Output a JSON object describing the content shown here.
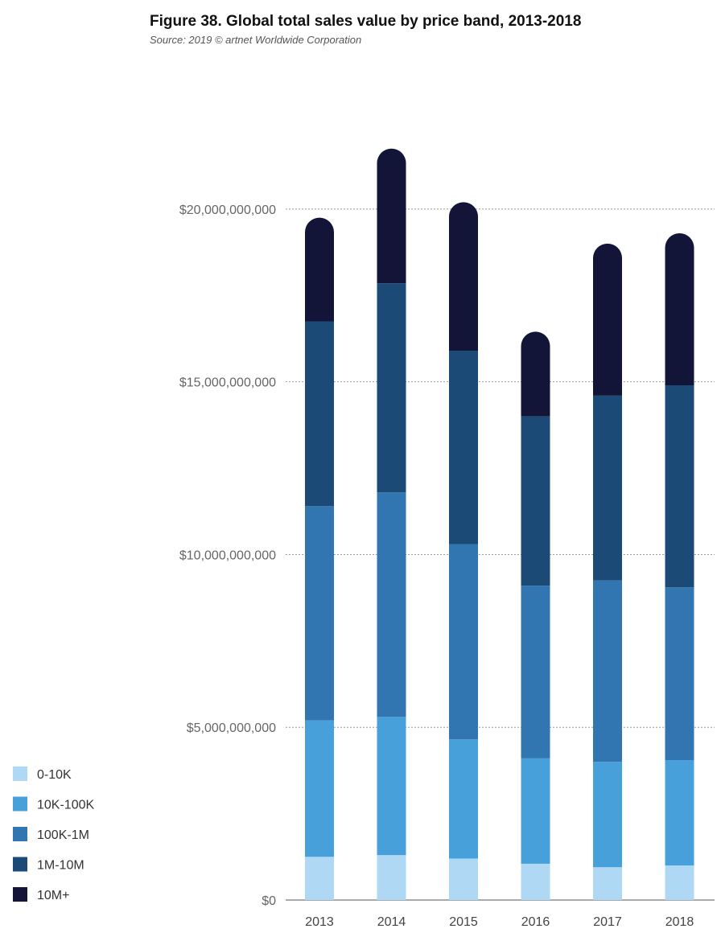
{
  "chart_data": {
    "type": "bar",
    "stacked": true,
    "title": "Figure 38. Global total sales value by price band, 2013-2018",
    "subtitle": "Source: 2019 © artnet Worldwide Corporation",
    "categories": [
      "2013",
      "2014",
      "2015",
      "2016",
      "2017",
      "2018"
    ],
    "series": [
      {
        "name": "0-10K",
        "color": "#aed8f3",
        "values": [
          1250000000,
          1300000000,
          1200000000,
          1050000000,
          950000000,
          1000000000
        ]
      },
      {
        "name": "10K-100K",
        "color": "#47a0da",
        "values": [
          3950000000,
          4000000000,
          3450000000,
          3050000000,
          3050000000,
          3050000000
        ]
      },
      {
        "name": "100K-1M",
        "color": "#3276b1",
        "values": [
          6200000000,
          6500000000,
          5650000000,
          5000000000,
          5250000000,
          5000000000
        ]
      },
      {
        "name": "1M-10M",
        "color": "#1c4a76",
        "values": [
          5350000000,
          6050000000,
          5600000000,
          4900000000,
          5350000000,
          5850000000
        ]
      },
      {
        "name": "10M+",
        "color": "#121538",
        "values": [
          3000000000,
          3900000000,
          4300000000,
          2450000000,
          4400000000,
          4400000000
        ]
      }
    ],
    "ylim": [
      0,
      22000000000
    ],
    "yticks": [
      {
        "value": 0,
        "label": "$0"
      },
      {
        "value": 5000000000,
        "label": "$5,000,000,000"
      },
      {
        "value": 10000000000,
        "label": "$10,000,000,000"
      },
      {
        "value": 15000000000,
        "label": "$15,000,000,000"
      },
      {
        "value": 20000000000,
        "label": "$20,000,000,000"
      }
    ],
    "grid": true,
    "legend_position": "bottom-left"
  }
}
